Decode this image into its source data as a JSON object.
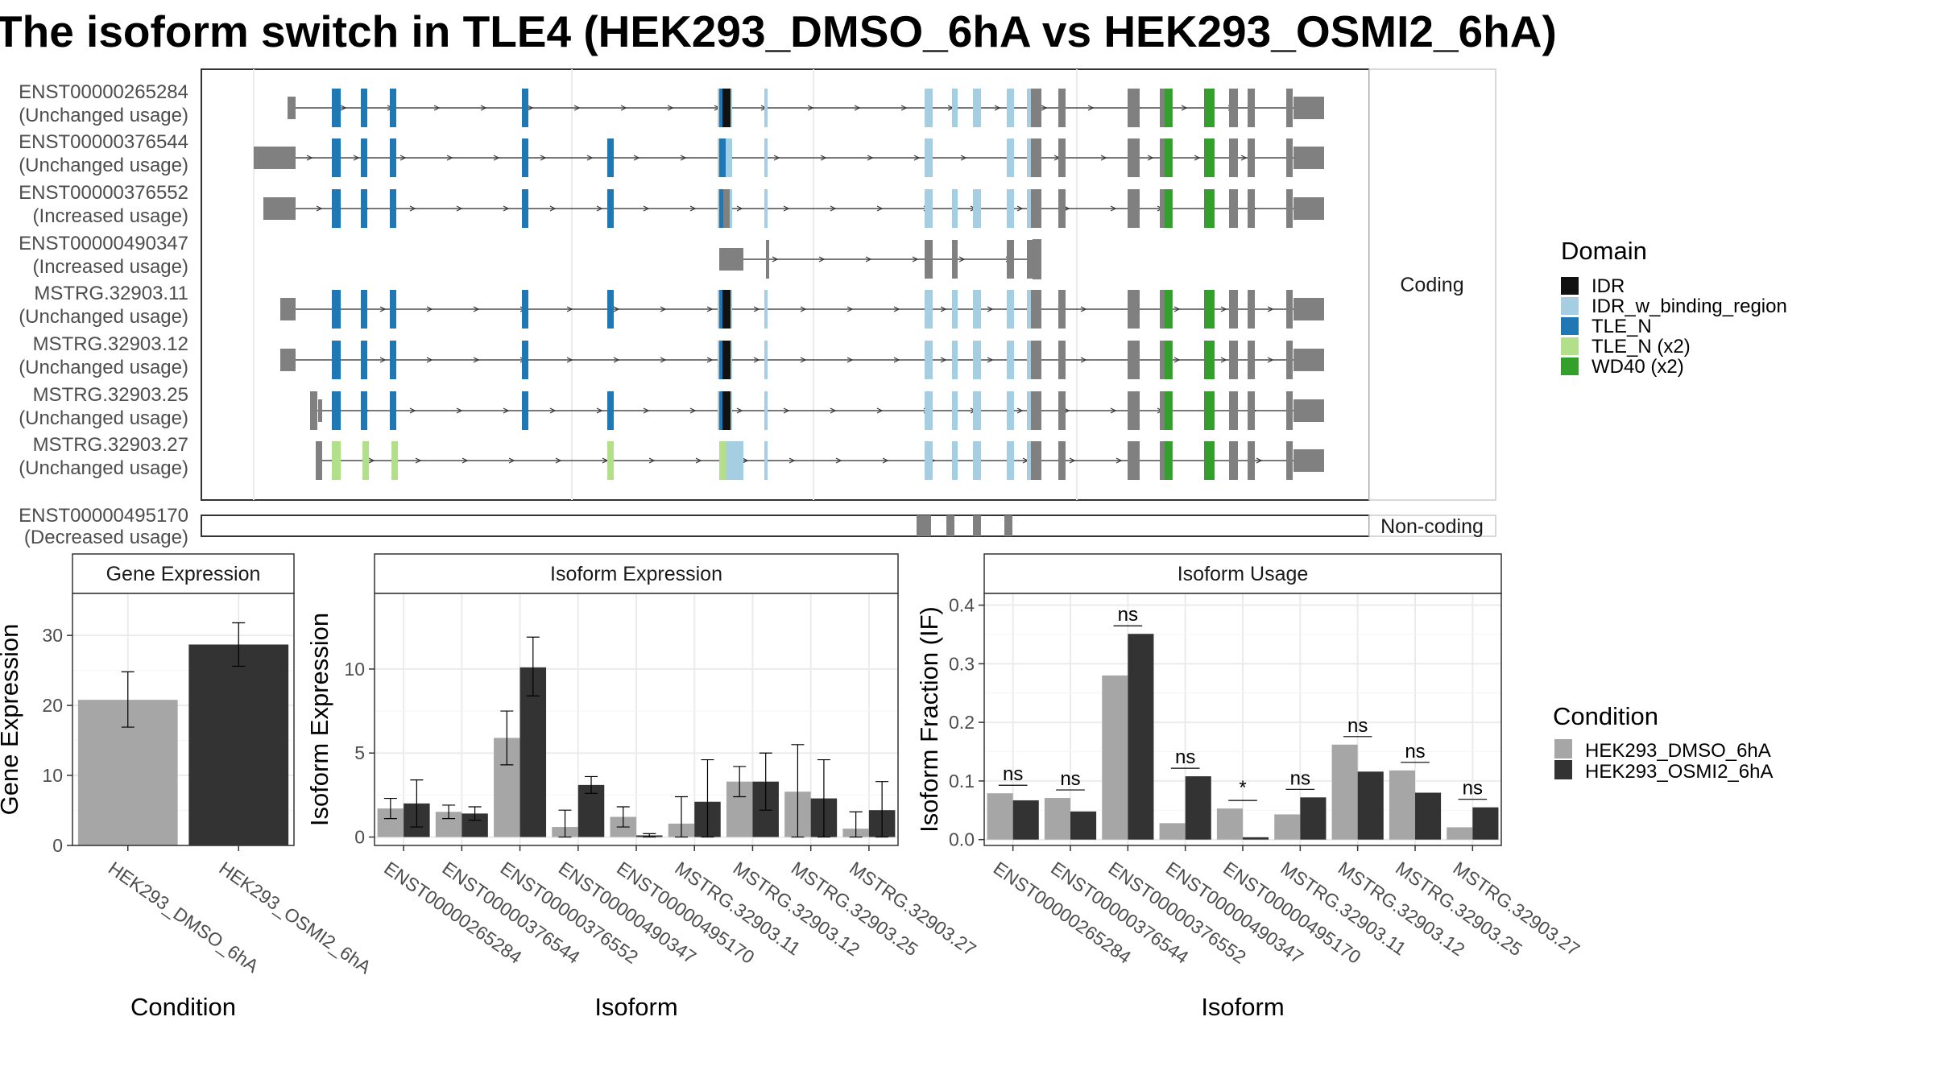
{
  "title": "The isoform switch in TLE4 (HEK293_DMSO_6hA vs HEK293_OSMI2_6hA)",
  "transcripts": {
    "coding_strip": "Coding",
    "noncoding_strip": "Non-coding",
    "coding": [
      {
        "id": "ENST00000265284",
        "usage": "(Unchanged usage)"
      },
      {
        "id": "ENST00000376544",
        "usage": "(Unchanged usage)"
      },
      {
        "id": "ENST00000376552",
        "usage": "(Increased usage)"
      },
      {
        "id": "ENST00000490347",
        "usage": "(Increased usage)"
      },
      {
        "id": "MSTRG.32903.11",
        "usage": "(Unchanged usage)"
      },
      {
        "id": "MSTRG.32903.12",
        "usage": "(Unchanged usage)"
      },
      {
        "id": "MSTRG.32903.25",
        "usage": "(Unchanged usage)"
      },
      {
        "id": "MSTRG.32903.27",
        "usage": "(Unchanged usage)"
      }
    ],
    "noncoding": [
      {
        "id": "ENST00000495170",
        "usage": "(Decreased usage)"
      }
    ]
  },
  "domain_legend": {
    "title": "Domain",
    "items": [
      {
        "label": "IDR",
        "color": "#111111"
      },
      {
        "label": "IDR_w_binding_region",
        "color": "#a6cee3"
      },
      {
        "label": "TLE_N",
        "color": "#1f78b4"
      },
      {
        "label": "TLE_N (x2)",
        "color": "#b2df8a"
      },
      {
        "label": "WD40 (x2)",
        "color": "#33a02c"
      }
    ]
  },
  "condition_legend": {
    "title": "Condition",
    "items": [
      {
        "label": "HEK293_DMSO_6hA",
        "color": "#a6a6a6"
      },
      {
        "label": "HEK293_OSMI2_6hA",
        "color": "#333333"
      }
    ]
  },
  "chart_data": [
    {
      "type": "bar",
      "title": "Gene Expression",
      "xlabel": "Condition",
      "ylabel": "Gene Expression",
      "ylim": [
        0,
        36
      ],
      "yticks": [
        0,
        10,
        20,
        30
      ],
      "categories": [
        "HEK293_DMSO_6hA",
        "HEK293_OSMI2_6hA"
      ],
      "values": [
        20.8,
        28.7
      ],
      "error_low": [
        16.9,
        25.6
      ],
      "error_high": [
        24.8,
        31.8
      ]
    },
    {
      "type": "bar",
      "title": "Isoform Expression",
      "xlabel": "Isoform",
      "ylabel": "Isoform Expression",
      "ylim": [
        -0.5,
        14.5
      ],
      "yticks": [
        0,
        5,
        10
      ],
      "categories": [
        "ENST00000265284",
        "ENST00000376544",
        "ENST00000376552",
        "ENST00000490347",
        "ENST00000495170",
        "MSTRG.32903.11",
        "MSTRG.32903.12",
        "MSTRG.32903.25",
        "MSTRG.32903.27"
      ],
      "series": [
        {
          "name": "HEK293_DMSO_6hA",
          "values": [
            1.7,
            1.5,
            5.9,
            0.6,
            1.2,
            0.8,
            3.3,
            2.7,
            0.5
          ],
          "err_low": [
            1.1,
            1.1,
            4.3,
            0.0,
            0.6,
            0.0,
            2.4,
            0.0,
            0.0
          ],
          "err_high": [
            2.3,
            1.9,
            7.5,
            1.6,
            1.8,
            2.4,
            4.2,
            5.5,
            1.5
          ]
        },
        {
          "name": "HEK293_OSMI2_6hA",
          "values": [
            2.0,
            1.4,
            10.1,
            3.1,
            0.1,
            2.1,
            3.3,
            2.3,
            1.6
          ],
          "err_low": [
            0.6,
            1.0,
            8.4,
            2.6,
            0.0,
            0.0,
            1.6,
            0.0,
            0.0
          ],
          "err_high": [
            3.4,
            1.8,
            11.9,
            3.6,
            0.2,
            4.6,
            5.0,
            4.6,
            3.3
          ]
        }
      ]
    },
    {
      "type": "bar",
      "title": "Isoform Usage",
      "xlabel": "Isoform",
      "ylabel": "Isoform Fraction (IF)",
      "ylim": [
        -0.01,
        0.42
      ],
      "yticks": [
        0.0,
        0.1,
        0.2,
        0.3,
        0.4
      ],
      "categories": [
        "ENST00000265284",
        "ENST00000376544",
        "ENST00000376552",
        "ENST00000490347",
        "ENST00000495170",
        "MSTRG.32903.11",
        "MSTRG.32903.12",
        "MSTRG.32903.25",
        "MSTRG.32903.27"
      ],
      "series": [
        {
          "name": "HEK293_DMSO_6hA",
          "values": [
            0.079,
            0.071,
            0.28,
            0.028,
            0.053,
            0.043,
            0.162,
            0.118,
            0.021
          ]
        },
        {
          "name": "HEK293_OSMI2_6hA",
          "values": [
            0.067,
            0.048,
            0.351,
            0.108,
            0.004,
            0.072,
            0.116,
            0.08,
            0.055
          ]
        }
      ],
      "significance": [
        "ns",
        "ns",
        "ns",
        "ns",
        "*",
        "ns",
        "ns",
        "ns",
        "ns"
      ]
    }
  ]
}
